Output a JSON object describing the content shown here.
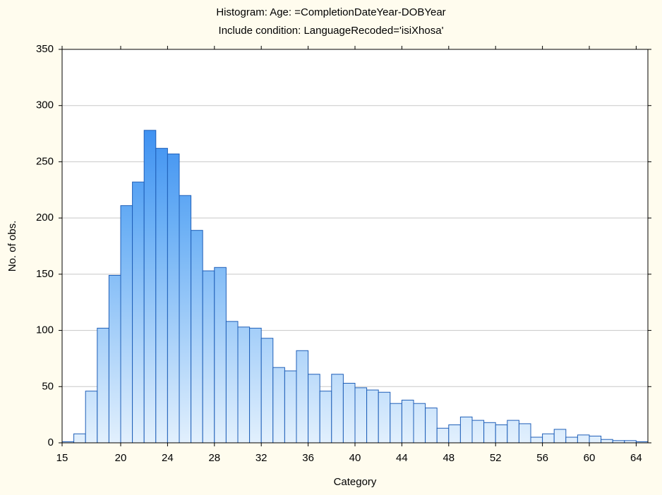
{
  "chart_data": {
    "type": "histogram",
    "title": "Histogram: Age: =CompletionDateYear-DOBYear",
    "subtitle": "Include condition: LanguageRecoded='isiXhosa'",
    "x_label": "Category",
    "y_label": "No. of obs.",
    "bins": [
      15,
      16,
      17,
      18,
      19,
      20,
      21,
      22,
      23,
      24,
      25,
      26,
      27,
      28,
      29,
      30,
      31,
      32,
      33,
      34,
      35,
      36,
      37,
      38,
      39,
      40,
      41,
      42,
      43,
      44,
      45,
      46,
      47,
      48,
      49,
      50,
      51,
      52,
      53,
      54,
      55,
      56,
      57,
      58,
      59,
      60,
      61,
      62,
      63,
      64,
      65
    ],
    "values": [
      1,
      8,
      46,
      102,
      149,
      211,
      232,
      278,
      262,
      257,
      220,
      189,
      153,
      156,
      108,
      103,
      102,
      93,
      67,
      64,
      82,
      61,
      46,
      61,
      53,
      49,
      47,
      45,
      35,
      38,
      35,
      31,
      13,
      16,
      23,
      20,
      18,
      16,
      20,
      17,
      5,
      8,
      12,
      5,
      7,
      6,
      3,
      2,
      2,
      1
    ],
    "color": "#2d86f0",
    "xlim": [
      15,
      65
    ],
    "xticks": [
      15,
      20,
      24,
      28,
      32,
      36,
      40,
      44,
      48,
      52,
      56,
      60,
      64
    ],
    "ylim": [
      0,
      350
    ],
    "yticks": [
      0,
      50,
      100,
      150,
      200,
      250,
      300,
      350
    ],
    "grid": true
  }
}
